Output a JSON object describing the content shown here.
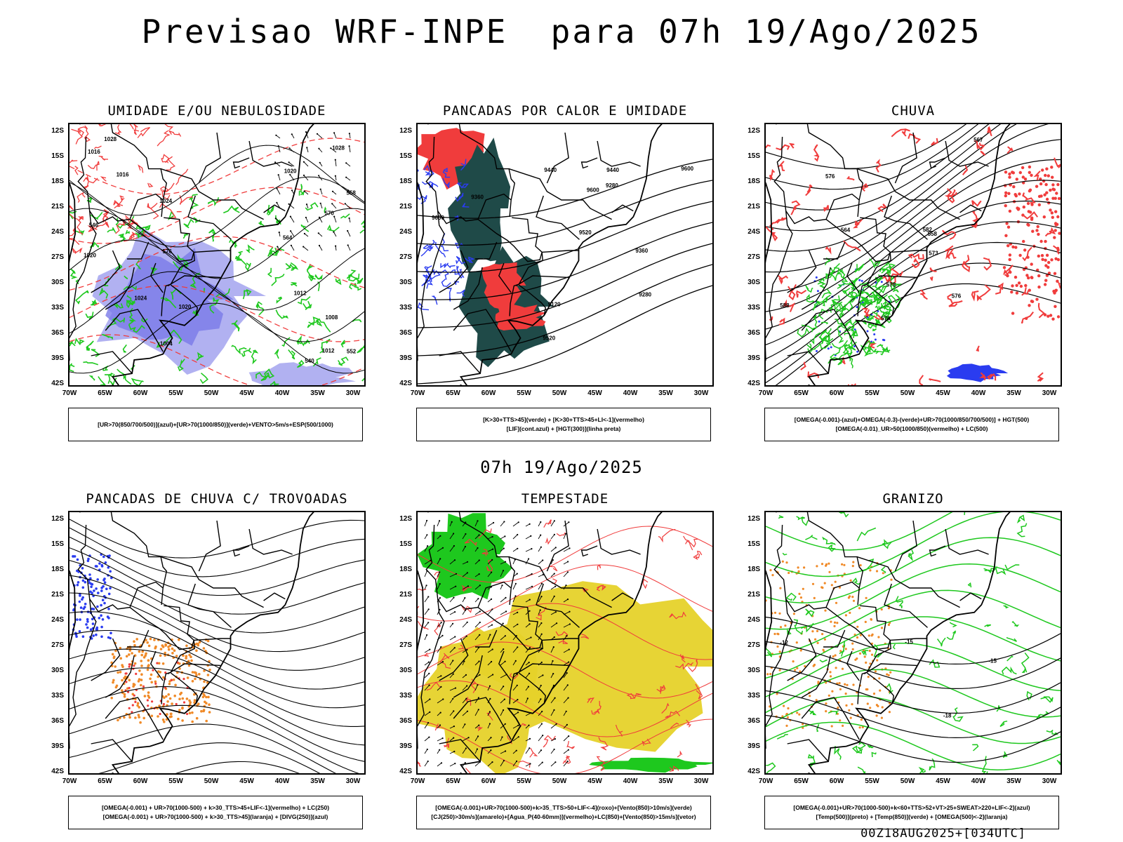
{
  "header": {
    "title": "Previsao WRF-INPE  para 07h 19/Ago/2025"
  },
  "middle_label": "07h 19/Ago/2025",
  "footer": "00Z18AUG2025+[034UTC]",
  "axes": {
    "lat_labels": [
      "12S",
      "15S",
      "18S",
      "21S",
      "24S",
      "27S",
      "30S",
      "33S",
      "36S",
      "39S",
      "42S"
    ],
    "lon_labels": [
      "70W",
      "65W",
      "60W",
      "55W",
      "50W",
      "45W",
      "40W",
      "35W",
      "30W"
    ]
  },
  "colors": {
    "green": "#1ec81e",
    "red": "#f03c3c",
    "blue": "#2a3cf0",
    "lavender": "#a8a8f0",
    "darkteal": "#1f4a48",
    "yellow": "#e6d22a",
    "orange": "#f08a28"
  },
  "panels": [
    {
      "id": "umidade",
      "title": "UMIDADE E/OU NEBULOSIDADE",
      "legend": [
        "[UR>70(850/700/500)](azul)+[UR>70(1000/850)](verde)+VENTO>5m/s+ESP(500/1000)"
      ],
      "contour_labels": [
        "1020",
        "1020",
        "1016",
        "1012",
        "1008",
        "1004",
        "1012",
        "1016",
        "1020",
        "1024",
        "1028",
        "1024",
        "1028",
        "564",
        "570",
        "576",
        "552",
        "558",
        "546",
        "540"
      ]
    },
    {
      "id": "pancadas-calor",
      "title": "PANCADAS POR CALOR E UMIDADE",
      "legend": [
        "[K>30+TTS>45](verde) + [K>30+TTS>45+LI<-1](vermelho)",
        "[LIF](cont.azul) + [HGT(300)](linha preta)"
      ],
      "contour_labels": [
        "9600",
        "9600",
        "9600",
        "9520",
        "9520",
        "9440",
        "9440",
        "9360",
        "9360",
        "9280",
        "9280",
        "9120"
      ]
    },
    {
      "id": "chuva",
      "title": "CHUVA",
      "legend": [
        "[OMEGA(-0.001)-(azul)+OMEGA(-0.3)-(verde)+UR>70(1000/850/700/500)] + HGT(500)",
        "[OMEGA(-0.01)_UR>50(1000/850)(vermelho) + LC(500)"
      ],
      "contour_labels": [
        "588",
        "582",
        "576",
        "579",
        "576",
        "573",
        "570",
        "567",
        "564",
        "558"
      ]
    },
    {
      "id": "pancadas-trovoadas",
      "title": "PANCADAS DE CHUVA C/ TROVOADAS",
      "legend": [
        "[OMEGA(-0.001) + UR>70(1000-500) + k>30_TTS>45+LIF<-1](vermelho) + LC(250)",
        "[OMEGA(-0.001) + UR>70(1000-500) + k>30_TTS>45](laranja) + [DIVG(250)](azul)"
      ],
      "contour_labels": []
    },
    {
      "id": "tempestade",
      "title": "TEMPESTADE",
      "legend": [
        "[OMEGA(-0.001)+UR>70(1000-500)+k>35_TTS>50+LIF<-4](roxo)+[Vento(850)>10m/s](verde)",
        "[CJ(250)>30m/s](amarelo)+[Agua_P(40-60mm)](vermelho)+LC(850)+[Vento(850)>15m/s](vetor)"
      ],
      "contour_labels": []
    },
    {
      "id": "granizo",
      "title": "GRANIZO",
      "legend": [
        "[OMEGA(-0.001)+UR>70(1000-500)+k<60+TTS>52+VT>25+SWEAT>220+LIF<-2](azul)",
        "[Temp(500)](preto) + [Temp(850)](verde) + [OMEGA(500)<-2](laranja)"
      ],
      "contour_labels": [
        "-12",
        "-15",
        "-18",
        "-15"
      ]
    }
  ]
}
